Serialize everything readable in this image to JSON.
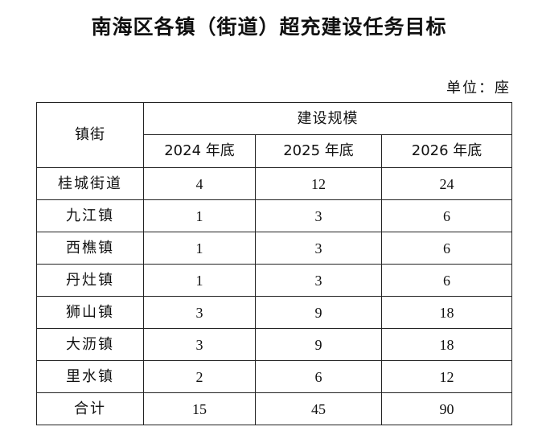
{
  "title": "南海区各镇（街道）超充建设任务目标",
  "unit_label": "单位：座",
  "table": {
    "row_header": "镇街",
    "group_header": "建设规模",
    "year_headers": [
      "2024 年底",
      "2025 年底",
      "2026 年底"
    ],
    "rows": [
      {
        "name": "桂城街道",
        "v2024": "4",
        "v2025": "12",
        "v2026": "24"
      },
      {
        "name": "九江镇",
        "v2024": "1",
        "v2025": "3",
        "v2026": "6"
      },
      {
        "name": "西樵镇",
        "v2024": "1",
        "v2025": "3",
        "v2026": "6"
      },
      {
        "name": "丹灶镇",
        "v2024": "1",
        "v2025": "3",
        "v2026": "6"
      },
      {
        "name": "狮山镇",
        "v2024": "3",
        "v2025": "9",
        "v2026": "18"
      },
      {
        "name": "大沥镇",
        "v2024": "3",
        "v2025": "9",
        "v2026": "18"
      },
      {
        "name": "里水镇",
        "v2024": "2",
        "v2025": "6",
        "v2026": "12"
      },
      {
        "name": "合计",
        "v2024": "15",
        "v2025": "45",
        "v2026": "90"
      }
    ]
  }
}
